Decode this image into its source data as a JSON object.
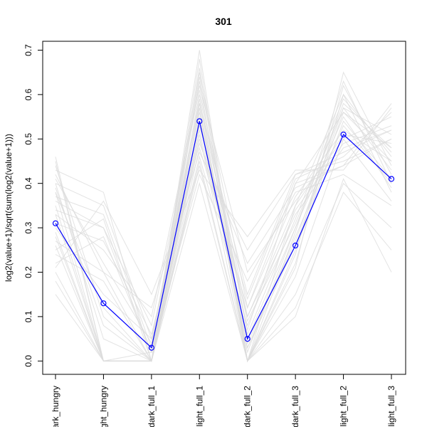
{
  "chart_data": {
    "type": "line",
    "title": "301",
    "xlabel": "",
    "ylabel": "log2(value+1)/sqrt(sum(log2(value+1)))",
    "categories": [
      "dark_hungry",
      "light_hungry",
      "dark_full_1",
      "light_full_1",
      "dark_full_2",
      "dark_full_3",
      "light_full_2",
      "light_full_3"
    ],
    "tick_labels_shown": [
      "ark_hungry",
      "ght_hungry",
      "dark_full_1",
      "light_full_1",
      "dark_full_2",
      "dark_full_3",
      "light_full_2",
      "light_full_3"
    ],
    "ylim": [
      -0.03,
      0.72
    ],
    "yticks": [
      0.0,
      0.1,
      0.2,
      0.3,
      0.4,
      0.5,
      0.6,
      0.7
    ],
    "ytick_labels": [
      "0.0",
      "0.1",
      "0.2",
      "0.3",
      "0.4",
      "0.5",
      "0.6",
      "0.7"
    ],
    "grid": false,
    "legend": "none",
    "series": [
      {
        "values": [
          0.31,
          0.13,
          0.03,
          0.54,
          0.05,
          0.26,
          0.51,
          0.41
        ],
        "color": "#0000ff",
        "marker": "open-circle",
        "highlight": true
      }
    ],
    "background_series_color": "#dcdcdc",
    "background_series": [
      [
        0.36,
        0.3,
        0.02,
        0.6,
        0.07,
        0.4,
        0.56,
        0.45
      ],
      [
        0.42,
        0.2,
        0.0,
        0.5,
        0.1,
        0.33,
        0.48,
        0.52
      ],
      [
        0.28,
        0.0,
        0.0,
        0.66,
        0.0,
        0.22,
        0.6,
        0.38
      ],
      [
        0.4,
        0.35,
        0.05,
        0.58,
        0.15,
        0.42,
        0.45,
        0.5
      ],
      [
        0.2,
        0.0,
        0.0,
        0.45,
        0.0,
        0.15,
        0.4,
        0.3
      ],
      [
        0.33,
        0.25,
        0.1,
        0.62,
        0.2,
        0.36,
        0.5,
        0.55
      ],
      [
        0.44,
        0.1,
        0.0,
        0.52,
        0.05,
        0.3,
        0.58,
        0.48
      ],
      [
        0.38,
        0.0,
        0.0,
        0.68,
        0.0,
        0.24,
        0.62,
        0.42
      ],
      [
        0.25,
        0.32,
        0.0,
        0.48,
        0.12,
        0.4,
        0.44,
        0.58
      ],
      [
        0.3,
        0.15,
        0.05,
        0.56,
        0.03,
        0.28,
        0.53,
        0.4
      ],
      [
        0.46,
        0.0,
        0.0,
        0.63,
        0.0,
        0.35,
        0.6,
        0.46
      ],
      [
        0.22,
        0.28,
        0.02,
        0.42,
        0.18,
        0.38,
        0.42,
        0.35
      ],
      [
        0.35,
        0.0,
        0.0,
        0.59,
        0.0,
        0.21,
        0.65,
        0.44
      ],
      [
        0.27,
        0.2,
        0.12,
        0.47,
        0.25,
        0.42,
        0.47,
        0.52
      ],
      [
        0.4,
        0.05,
        0.0,
        0.55,
        0.02,
        0.3,
        0.55,
        0.39
      ],
      [
        0.18,
        0.0,
        0.0,
        0.4,
        0.0,
        0.12,
        0.38,
        0.25
      ],
      [
        0.34,
        0.3,
        0.08,
        0.61,
        0.1,
        0.35,
        0.51,
        0.49
      ],
      [
        0.29,
        0.0,
        0.02,
        0.57,
        0.04,
        0.27,
        0.57,
        0.43
      ],
      [
        0.43,
        0.38,
        0.0,
        0.53,
        0.14,
        0.41,
        0.46,
        0.56
      ],
      [
        0.15,
        0.0,
        0.0,
        0.44,
        0.0,
        0.1,
        0.41,
        0.2
      ],
      [
        0.38,
        0.12,
        0.0,
        0.64,
        0.06,
        0.32,
        0.59,
        0.47
      ],
      [
        0.31,
        0.27,
        0.06,
        0.49,
        0.22,
        0.39,
        0.44,
        0.5
      ],
      [
        0.45,
        0.0,
        0.0,
        0.57,
        0.0,
        0.25,
        0.54,
        0.41
      ],
      [
        0.24,
        0.18,
        0.0,
        0.46,
        0.08,
        0.34,
        0.49,
        0.53
      ],
      [
        0.37,
        0.33,
        0.03,
        0.65,
        0.12,
        0.37,
        0.52,
        0.45
      ],
      [
        0.26,
        0.0,
        0.0,
        0.51,
        0.0,
        0.19,
        0.5,
        0.36
      ],
      [
        0.41,
        0.22,
        0.04,
        0.58,
        0.09,
        0.31,
        0.57,
        0.51
      ],
      [
        0.33,
        0.0,
        0.0,
        0.7,
        0.0,
        0.29,
        0.63,
        0.4
      ],
      [
        0.21,
        0.36,
        0.15,
        0.43,
        0.28,
        0.43,
        0.43,
        0.57
      ],
      [
        0.39,
        0.08,
        0.0,
        0.54,
        0.03,
        0.26,
        0.56,
        0.48
      ]
    ]
  }
}
